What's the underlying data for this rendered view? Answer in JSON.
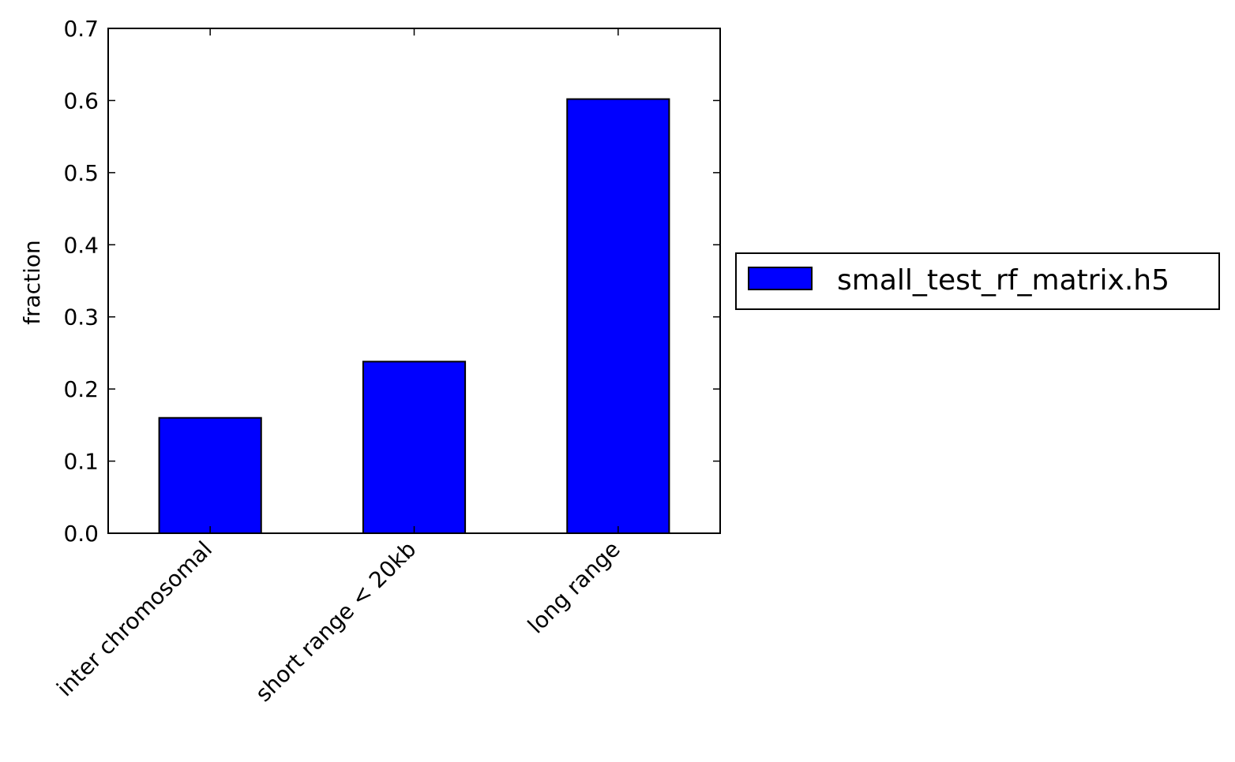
{
  "chart_data": {
    "type": "bar",
    "categories": [
      "inter chromosomal",
      "short range < 20kb",
      "long range"
    ],
    "series": [
      {
        "name": "small_test_rf_matrix.h5",
        "values": [
          0.16,
          0.238,
          0.602
        ],
        "color": "#0000ff"
      }
    ],
    "title": "",
    "xlabel": "",
    "ylabel": "fraction",
    "ylim": [
      0,
      0.7
    ],
    "yticks": [
      "0.0",
      "0.1",
      "0.2",
      "0.3",
      "0.4",
      "0.5",
      "0.6",
      "0.7"
    ],
    "grid": false,
    "legend_position": "outside right, center"
  }
}
